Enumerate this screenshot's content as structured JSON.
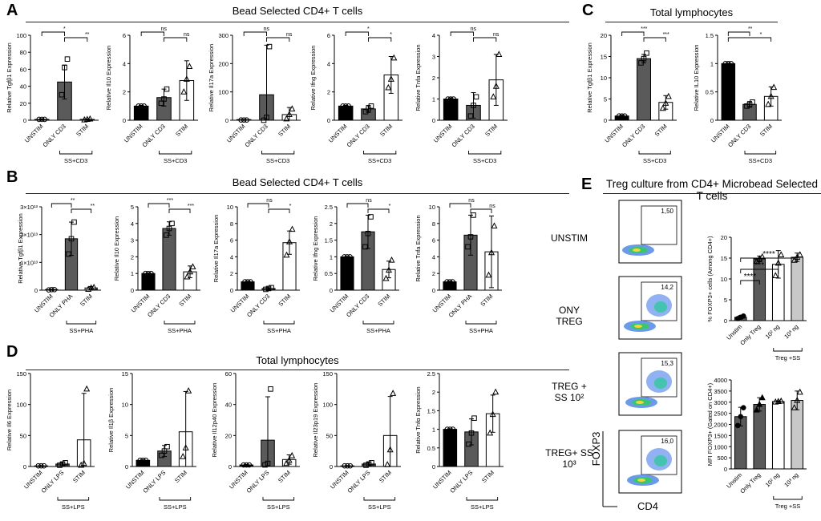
{
  "panels": {
    "A": "A",
    "B": "B",
    "C": "C",
    "D": "D",
    "E": "E"
  },
  "section_titles": {
    "A": "Bead Selected CD4+ T cells",
    "B": "Bead Selected CD4+ T cells",
    "C": "Total lymphocytes",
    "D": "Total lymphocytes",
    "E": "Treg culture from CD4+ Microbead Selected T cells"
  },
  "flow": {
    "rows": [
      {
        "label": "UNSTIM",
        "pct": "1,50"
      },
      {
        "label": "ONY TREG",
        "pct": "14,2"
      },
      {
        "label": "TREG + SS 10²",
        "pct": "15,3"
      },
      {
        "label": "TREG+ SS 10³",
        "pct": "16,0"
      }
    ],
    "ylabel": "FOXP3",
    "xlabel": "CD4"
  },
  "colors": {
    "black": "#000000",
    "darkgray": "#5a5a5a",
    "midgray": "#8c8c8c",
    "lightgray": "#c8c8c8",
    "white": "#ffffff"
  },
  "chart_data": [
    {
      "id": "A1",
      "type": "bar",
      "ylabel": "Relative Tgfβ1 Expression",
      "ylim": [
        0,
        100
      ],
      "yticks": [
        0,
        20,
        40,
        60,
        80,
        100
      ],
      "categories": [
        "UNSTIM",
        "ONLY CD3",
        "STIM"
      ],
      "values": [
        1,
        45,
        1
      ],
      "err": [
        0.5,
        20,
        0.5
      ],
      "points": [
        [
          1,
          1,
          1
        ],
        [
          30,
          62,
          72
        ],
        [
          0.5,
          1,
          1.5
        ]
      ],
      "sig": [
        [
          "UNSTIM",
          "ONLY CD3",
          "*"
        ],
        [
          "ONLY CD3",
          "STIM",
          "**"
        ]
      ],
      "group": "SS+CD3"
    },
    {
      "id": "A2",
      "type": "bar",
      "ylabel": "Relative Il10 Expression",
      "ylim": [
        0,
        6
      ],
      "yticks": [
        0,
        2,
        4,
        6
      ],
      "categories": [
        "UNSTIM",
        "ONLY CD3",
        "STIM"
      ],
      "values": [
        1,
        1.6,
        2.8
      ],
      "err": [
        0.05,
        0.6,
        1.4
      ],
      "points": [
        [
          1,
          1,
          1
        ],
        [
          1.2,
          1.5,
          2.2
        ],
        [
          2,
          2.9,
          3.8
        ]
      ],
      "sig": [
        [
          "UNSTIM",
          "ONLY CD3",
          "ns"
        ],
        [
          "ONLY CD3",
          "STIM",
          "ns"
        ]
      ],
      "group": "SS+CD3"
    },
    {
      "id": "A3",
      "type": "bar",
      "ylabel": "Relative Il17a Expression",
      "ylim": [
        0,
        300
      ],
      "yticks": [
        0,
        100,
        200,
        300
      ],
      "categories": [
        "UNSTIM",
        "ONLY CD3",
        "STIM"
      ],
      "values": [
        1,
        90,
        20
      ],
      "err": [
        0.5,
        175,
        25
      ],
      "points": [
        [
          1,
          1,
          1
        ],
        [
          0,
          10,
          260
        ],
        [
          5,
          20,
          40
        ]
      ],
      "sig": [
        [
          "UNSTIM",
          "ONLY CD3",
          "ns"
        ],
        [
          "ONLY CD3",
          "STIM",
          "ns"
        ]
      ],
      "group": "SS+CD3"
    },
    {
      "id": "A4",
      "type": "bar",
      "ylabel": "Relative Ifng Expression",
      "ylim": [
        0,
        6
      ],
      "yticks": [
        0,
        2,
        4,
        6
      ],
      "categories": [
        "UNSTIM",
        "ONLY CD3",
        "STIM"
      ],
      "values": [
        1,
        0.8,
        3.2
      ],
      "err": [
        0.05,
        0.25,
        1.3
      ],
      "points": [
        [
          1,
          1,
          1
        ],
        [
          0.6,
          0.8,
          1.0
        ],
        [
          2.3,
          2.9,
          4.4
        ]
      ],
      "sig": [
        [
          "UNSTIM",
          "ONLY CD3",
          "*"
        ],
        [
          "ONLY CD3",
          "STIM",
          "*"
        ]
      ],
      "group": "SS+CD3"
    },
    {
      "id": "A5",
      "type": "bar",
      "ylabel": "Relative Tnfa Expression",
      "ylim": [
        0,
        4
      ],
      "yticks": [
        0,
        1,
        2,
        3,
        4
      ],
      "categories": [
        "UNSTIM",
        "ONLY CD3",
        "STIM"
      ],
      "values": [
        1,
        0.7,
        1.9
      ],
      "err": [
        0.05,
        0.6,
        1.2
      ],
      "points": [
        [
          1,
          1,
          1
        ],
        [
          0.2,
          0.7,
          1.1
        ],
        [
          1.1,
          1.6,
          3.1
        ]
      ],
      "sig": [
        [
          "UNSTIM",
          "ONLY CD3",
          "ns"
        ],
        [
          "ONLY CD3",
          "STIM",
          "ns"
        ]
      ],
      "group": "SS+CD3"
    },
    {
      "id": "B1",
      "type": "bar",
      "ylabel": "Relative Tgfβ1 Expression",
      "ylim": [
        0,
        3
      ],
      "yticks": [
        0,
        1,
        2,
        3
      ],
      "ytick_labels": [
        "0",
        "1×10¹³",
        "2×10¹³",
        "3×10¹³"
      ],
      "categories": [
        "UNSTIM",
        "ONLY PHA",
        "STIM"
      ],
      "values": [
        0.02,
        1.85,
        0.08
      ],
      "err": [
        0.01,
        0.6,
        0.05
      ],
      "points": [
        [
          0.01,
          0.02,
          0.02
        ],
        [
          1.3,
          1.85,
          2.45
        ],
        [
          0.03,
          0.08,
          0.1
        ]
      ],
      "sig": [
        [
          "UNSTIM",
          "ONLY PHA",
          "**"
        ],
        [
          "ONLY PHA",
          "STIM",
          "**"
        ]
      ],
      "group": "SS+PHA"
    },
    {
      "id": "B2",
      "type": "bar",
      "ylabel": "Relative Il10 Expression",
      "ylim": [
        0,
        5
      ],
      "yticks": [
        0,
        1,
        2,
        3,
        4,
        5
      ],
      "categories": [
        "UNSTIM",
        "ONLY CD3",
        "STIM"
      ],
      "values": [
        1,
        3.7,
        1.1
      ],
      "err": [
        0.02,
        0.4,
        0.35
      ],
      "points": [
        [
          1,
          1,
          1
        ],
        [
          3.3,
          3.7,
          4.0
        ],
        [
          0.8,
          1.1,
          1.4
        ]
      ],
      "sig": [
        [
          "UNSTIM",
          "ONLY CD3",
          "***"
        ],
        [
          "ONLY CD3",
          "STIM",
          "***"
        ]
      ],
      "group": "SS+PHA"
    },
    {
      "id": "B3",
      "type": "bar",
      "ylabel": "Relative Il17a Expression",
      "ylim": [
        0,
        10
      ],
      "yticks": [
        0,
        2,
        4,
        6,
        8,
        10
      ],
      "categories": [
        "UNSTIM",
        "ONLY CD3",
        "STIM"
      ],
      "values": [
        1,
        0.2,
        5.7
      ],
      "err": [
        0.05,
        0.1,
        1.4
      ],
      "points": [
        [
          1,
          1,
          1
        ],
        [
          0.1,
          0.2,
          0.3
        ],
        [
          4.2,
          5.8,
          7.3
        ]
      ],
      "sig": [
        [
          "UNSTIM",
          "ONLY CD3",
          "ns"
        ],
        [
          "ONLY CD3",
          "STIM",
          "*"
        ]
      ],
      "group": "SS+PHA"
    },
    {
      "id": "B4",
      "type": "bar",
      "ylabel": "Relative Ifng Expression",
      "ylim": [
        0,
        2.5
      ],
      "yticks": [
        0,
        0.5,
        1.0,
        1.5,
        2.0,
        2.5
      ],
      "categories": [
        "UNSTIM",
        "ONLY CD3",
        "STIM"
      ],
      "values": [
        1,
        1.75,
        0.62
      ],
      "err": [
        0.01,
        0.5,
        0.25
      ],
      "points": [
        [
          1,
          1,
          1
        ],
        [
          1.3,
          1.7,
          2.2
        ],
        [
          0.35,
          0.6,
          0.9
        ]
      ],
      "sig": [
        [
          "UNSTIM",
          "ONLY CD3",
          "ns"
        ],
        [
          "ONLY CD3",
          "STIM",
          "*"
        ]
      ],
      "group": "SS+PHA"
    },
    {
      "id": "B5",
      "type": "bar",
      "ylabel": "Relative Tnfa Expression",
      "ylim": [
        0,
        10
      ],
      "yticks": [
        0,
        2,
        4,
        6,
        8,
        10
      ],
      "categories": [
        "UNSTIM",
        "ONLY PHA",
        "STIM"
      ],
      "values": [
        1,
        6.6,
        4.6
      ],
      "err": [
        0.05,
        2.4,
        4.3
      ],
      "points": [
        [
          1,
          1,
          1
        ],
        [
          5.2,
          6.4,
          9.0
        ],
        [
          1.8,
          4.5,
          7.7
        ]
      ],
      "sig": [
        [
          "UNSTIM",
          "ONLY PHA",
          "ns"
        ],
        [
          "ONLY PHA",
          "STIM",
          "ns"
        ]
      ],
      "group": "SS+PHA"
    },
    {
      "id": "C1",
      "type": "bar",
      "ylabel": "Relative Tgfβ1 Expression",
      "ylim": [
        0,
        20
      ],
      "yticks": [
        0,
        5,
        10,
        15,
        20
      ],
      "categories": [
        "UNSTIM",
        "ONLY CD3",
        "STIM"
      ],
      "values": [
        1,
        14.5,
        4.2
      ],
      "err": [
        0.2,
        1.0,
        1.6
      ],
      "points": [
        [
          1,
          1,
          1
        ],
        [
          13.5,
          14.5,
          15.8
        ],
        [
          2.8,
          4.0,
          5.6
        ]
      ],
      "sig": [
        [
          "UNSTIM",
          "ONLY CD3",
          "***"
        ],
        [
          "ONLY CD3",
          "STIM",
          "***"
        ]
      ],
      "group": "SS+CD3"
    },
    {
      "id": "C2",
      "type": "bar",
      "ylabel": "Relative IL10 Expression",
      "ylim": [
        0,
        1.5
      ],
      "yticks": [
        0,
        0.5,
        1.0,
        1.5
      ],
      "categories": [
        "UNSTIM",
        "ONLY CD3",
        "STIM"
      ],
      "values": [
        1,
        0.28,
        0.42
      ],
      "err": [
        0.005,
        0.05,
        0.17
      ],
      "points": [
        [
          1,
          1,
          1
        ],
        [
          0.25,
          0.28,
          0.32
        ],
        [
          0.28,
          0.42,
          0.58
        ]
      ],
      "sig": [
        [
          "UNSTIM",
          "ONLY CD3",
          "**"
        ],
        [
          "UNSTIM",
          "STIM",
          "*"
        ]
      ],
      "group": "SS+CD3"
    },
    {
      "id": "D1",
      "type": "bar",
      "ylabel": "Relative Il6 Expression",
      "ylim": [
        0,
        150
      ],
      "yticks": [
        0,
        50,
        100,
        150
      ],
      "categories": [
        "UNSTIM",
        "ONLY LPS",
        "STIM"
      ],
      "values": [
        1,
        4,
        43
      ],
      "err": [
        0.5,
        3,
        75
      ],
      "points": [
        [
          1,
          1,
          1
        ],
        [
          2,
          4,
          6
        ],
        [
          2,
          5,
          125
        ]
      ],
      "sig": [],
      "group": "SS+LPS"
    },
    {
      "id": "D2",
      "type": "bar",
      "ylabel": "Relative Il1β Expression",
      "ylim": [
        0,
        15
      ],
      "yticks": [
        0,
        5,
        10,
        15
      ],
      "categories": [
        "UNSTIM",
        "ONLY LPS",
        "STIM"
      ],
      "values": [
        1,
        2.5,
        5.6
      ],
      "err": [
        0.05,
        0.9,
        6.5
      ],
      "points": [
        [
          1,
          1,
          1
        ],
        [
          1.8,
          2.5,
          3.2
        ],
        [
          1.6,
          3.0,
          12.2
        ]
      ],
      "sig": [],
      "group": "SS+LPS"
    },
    {
      "id": "D3",
      "type": "bar",
      "ylabel": "Relative Il12p40 Expression",
      "ylim": [
        0,
        60
      ],
      "yticks": [
        0,
        20,
        40,
        60
      ],
      "categories": [
        "UNSTIM",
        "ONLY LPS",
        "STIM"
      ],
      "values": [
        1,
        17,
        4.5
      ],
      "err": [
        0.3,
        28,
        3
      ],
      "points": [
        [
          1,
          1,
          1
        ],
        [
          1,
          2,
          50
        ],
        [
          2,
          4,
          7
        ]
      ],
      "sig": [],
      "group": "SS+LPS"
    },
    {
      "id": "D4",
      "type": "bar",
      "ylabel": "Relative Il23p19 Expression",
      "ylim": [
        0,
        150
      ],
      "yticks": [
        0,
        50,
        100,
        150
      ],
      "categories": [
        "UNSTIM",
        "ONLY LPS",
        "STIM"
      ],
      "values": [
        1,
        4,
        50
      ],
      "err": [
        0.5,
        3,
        63
      ],
      "points": [
        [
          1,
          1,
          1
        ],
        [
          2,
          4,
          6
        ],
        [
          3,
          27,
          118
        ]
      ],
      "sig": [],
      "group": "SS+LPS"
    },
    {
      "id": "D5",
      "type": "bar",
      "ylabel": "Relative Tnfα Expression",
      "ylim": [
        0,
        2.5
      ],
      "yticks": [
        0,
        0.5,
        1.0,
        1.5,
        2.0,
        2.5
      ],
      "categories": [
        "UNSTIM",
        "ONLY LPS",
        "STIM"
      ],
      "values": [
        1,
        0.93,
        1.42
      ],
      "err": [
        0.01,
        0.35,
        0.5
      ],
      "points": [
        [
          1,
          1,
          1
        ],
        [
          0.6,
          0.9,
          1.3
        ],
        [
          0.9,
          1.4,
          2.0
        ]
      ],
      "sig": [],
      "group": "SS+LPS"
    },
    {
      "id": "E1",
      "type": "bar",
      "ylabel": "% FOXP3+ cells (Among CD4+)",
      "ylim": [
        0,
        20
      ],
      "yticks": [
        0,
        5,
        10,
        15,
        20
      ],
      "categories": [
        "Unstim",
        "Only Treg",
        "10² ng",
        "10³ ng"
      ],
      "values": [
        0.8,
        14.8,
        13.5,
        15.2
      ],
      "err": [
        0.4,
        0.7,
        3.3,
        1.0
      ],
      "points": [
        [
          0.5,
          0.8,
          1.1
        ],
        [
          14.2,
          14.8,
          15.3
        ],
        [
          10.8,
          13.8,
          15.8
        ],
        [
          14.5,
          15.2,
          15.8
        ]
      ],
      "sig": [
        [
          "Unstim",
          "Only Treg",
          "****"
        ],
        [
          "Unstim",
          "10² ng",
          "***"
        ],
        [
          "Unstim",
          "10³ ng",
          "****"
        ]
      ],
      "group": "Treg +SS"
    },
    {
      "id": "E2",
      "type": "bar",
      "ylabel": "MFI FOXP3+ (Gated on CD4+)",
      "ylim": [
        0,
        4000
      ],
      "yticks": [
        0,
        500,
        1000,
        1500,
        2000,
        2500,
        3000,
        3500,
        4000
      ],
      "categories": [
        "Unstim",
        "Only Treg",
        "10² ng",
        "10³ ng"
      ],
      "values": [
        2350,
        2900,
        3030,
        3080
      ],
      "err": [
        420,
        300,
        30,
        420
      ],
      "points": [
        [
          1950,
          2350,
          2750
        ],
        [
          2650,
          2900,
          3200
        ],
        [
          3010,
          3030,
          3050
        ],
        [
          2750,
          3080,
          3450
        ]
      ],
      "sig": [],
      "group": "Treg +SS"
    }
  ]
}
